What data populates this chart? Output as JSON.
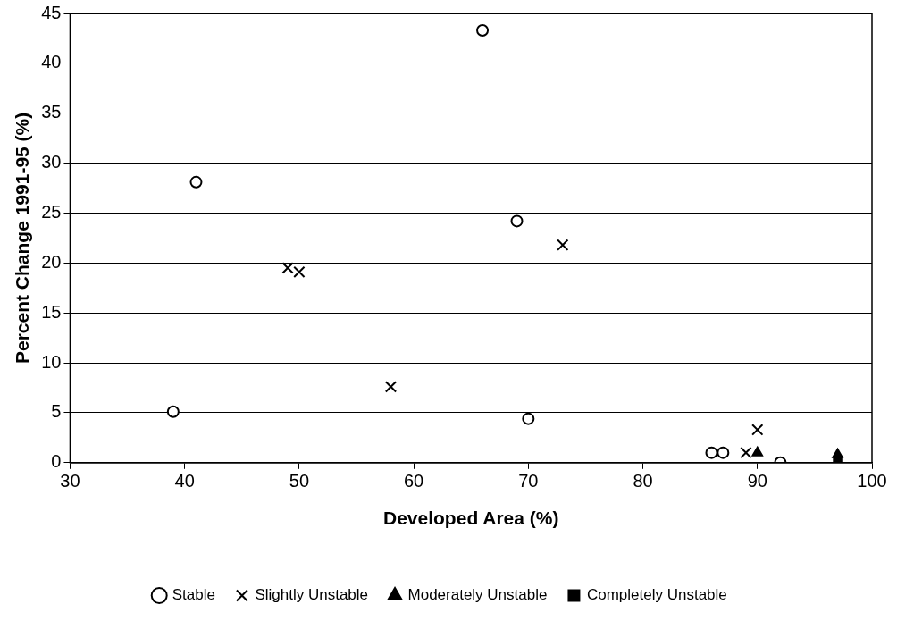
{
  "chart_data": {
    "type": "scatter",
    "xlabel": "Developed Area (%)",
    "ylabel": "Percent Change 1991-95 (%)",
    "xlim": [
      30,
      100
    ],
    "xticks": [
      30,
      40,
      50,
      60,
      70,
      80,
      90,
      100
    ],
    "ylim": [
      0,
      45
    ],
    "yticks": [
      0,
      5,
      10,
      15,
      20,
      25,
      30,
      35,
      40,
      45
    ],
    "grid": "y",
    "legend": "bottom",
    "series": [
      {
        "name": "Stable",
        "color": "#000000",
        "marker": "circle",
        "x": [
          39,
          41,
          66,
          69,
          70,
          86,
          87,
          92
        ],
        "values": [
          5.1,
          28.1,
          43.3,
          24.2,
          4.4,
          1,
          1,
          0
        ]
      },
      {
        "name": "Slightly Unstable",
        "color": "#000000",
        "marker": "cross",
        "x": [
          49,
          50,
          58,
          73,
          89,
          90
        ],
        "values": [
          19.5,
          19.1,
          7.6,
          21.8,
          1,
          3.3
        ]
      },
      {
        "name": "Moderately Unstable",
        "color": "#000000",
        "marker": "triangle",
        "x": [
          90,
          97
        ],
        "values": [
          1,
          0.8
        ]
      },
      {
        "name": "Completely Unstable",
        "color": "#000000",
        "marker": "square",
        "x": [
          97
        ],
        "values": [
          0.2
        ]
      }
    ]
  }
}
